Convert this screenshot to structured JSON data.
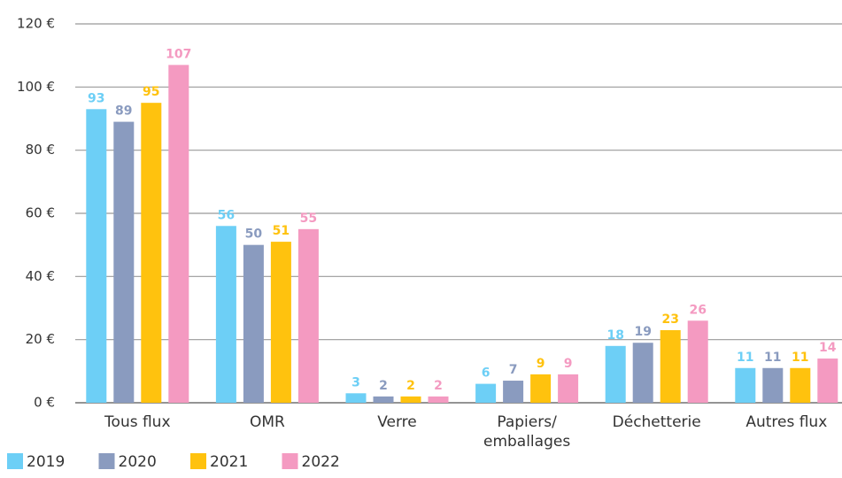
{
  "chart_data": {
    "type": "bar",
    "categories": [
      "Tous flux",
      "OMR",
      "Verre",
      "Papiers/ emballages",
      "Déchetterie",
      "Autres flux"
    ],
    "series": [
      {
        "name": "2019",
        "color": "#6dcff6",
        "values": [
          93,
          56,
          3,
          6,
          18,
          11
        ]
      },
      {
        "name": "2020",
        "color": "#8a9bbf",
        "values": [
          89,
          50,
          2,
          7,
          19,
          11
        ]
      },
      {
        "name": "2021",
        "color": "#ffc20e",
        "values": [
          95,
          51,
          2,
          9,
          23,
          11
        ]
      },
      {
        "name": "2022",
        "color": "#f49ac1",
        "values": [
          107,
          55,
          2,
          9,
          26,
          14
        ]
      }
    ],
    "ylim": [
      0,
      120
    ],
    "yticks": [
      {
        "value": 0,
        "label": "0 €"
      },
      {
        "value": 20,
        "label": "20 €"
      },
      {
        "value": 40,
        "label": "40 €"
      },
      {
        "value": 60,
        "label": "60 €"
      },
      {
        "value": 80,
        "label": "80 €"
      },
      {
        "value": 100,
        "label": "100 €"
      },
      {
        "value": 120,
        "label": "120 €"
      }
    ],
    "grid": true,
    "legend": "bottom-left"
  }
}
